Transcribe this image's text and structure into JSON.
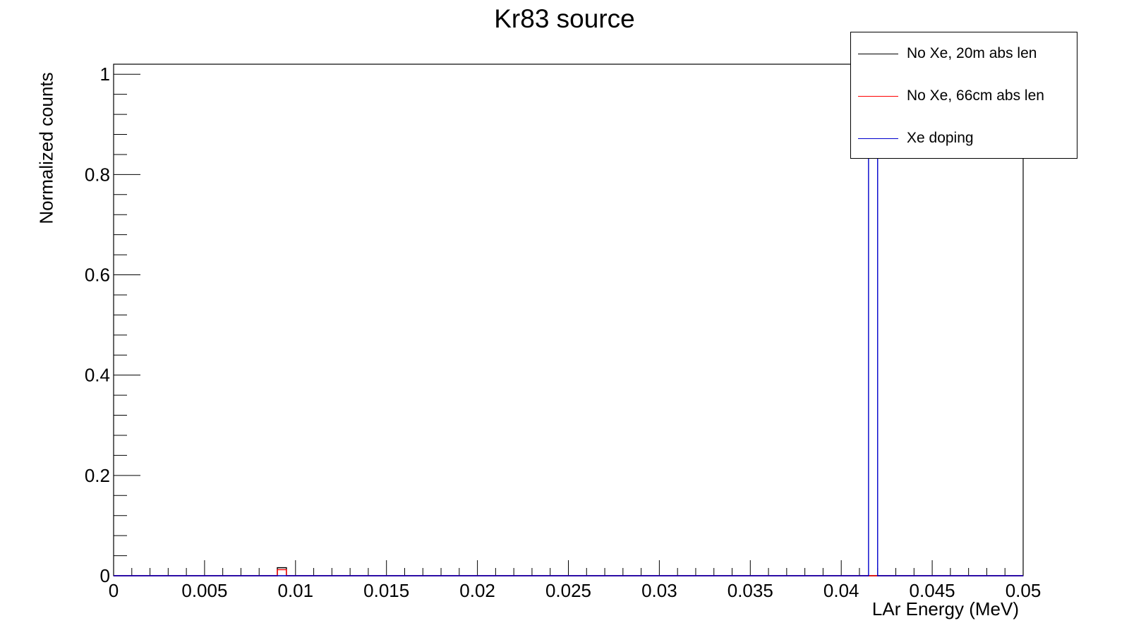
{
  "chart_data": {
    "type": "line",
    "title": "Kr83 source",
    "xlabel": "LAr Energy (MeV)",
    "ylabel": "Normalized counts",
    "xlim": [
      0,
      0.05
    ],
    "ylim": [
      0,
      1.02
    ],
    "x_ticks": [
      "0",
      "0.005",
      "0.01",
      "0.015",
      "0.02",
      "0.025",
      "0.03",
      "0.035",
      "0.04",
      "0.045",
      "0.05"
    ],
    "y_ticks": [
      "0",
      "0.2",
      "0.4",
      "0.6",
      "0.8",
      "1"
    ],
    "legend_position": "top-right",
    "grid": false,
    "bin_width": 0.0005,
    "series": [
      {
        "name": "No Xe, 20m abs len",
        "color": "#000000",
        "bins": [
          {
            "x0": 0.009,
            "x1": 0.0095,
            "y": 0.016
          }
        ]
      },
      {
        "name": "No Xe, 66cm abs len",
        "color": "#ff0000",
        "bins": [
          {
            "x0": 0.009,
            "x1": 0.0095,
            "y": 0.012
          }
        ]
      },
      {
        "name": "Xe doping",
        "color": "#0000cc",
        "bins": [
          {
            "x0": 0.0415,
            "x1": 0.042,
            "y": 0.97
          }
        ]
      }
    ]
  }
}
